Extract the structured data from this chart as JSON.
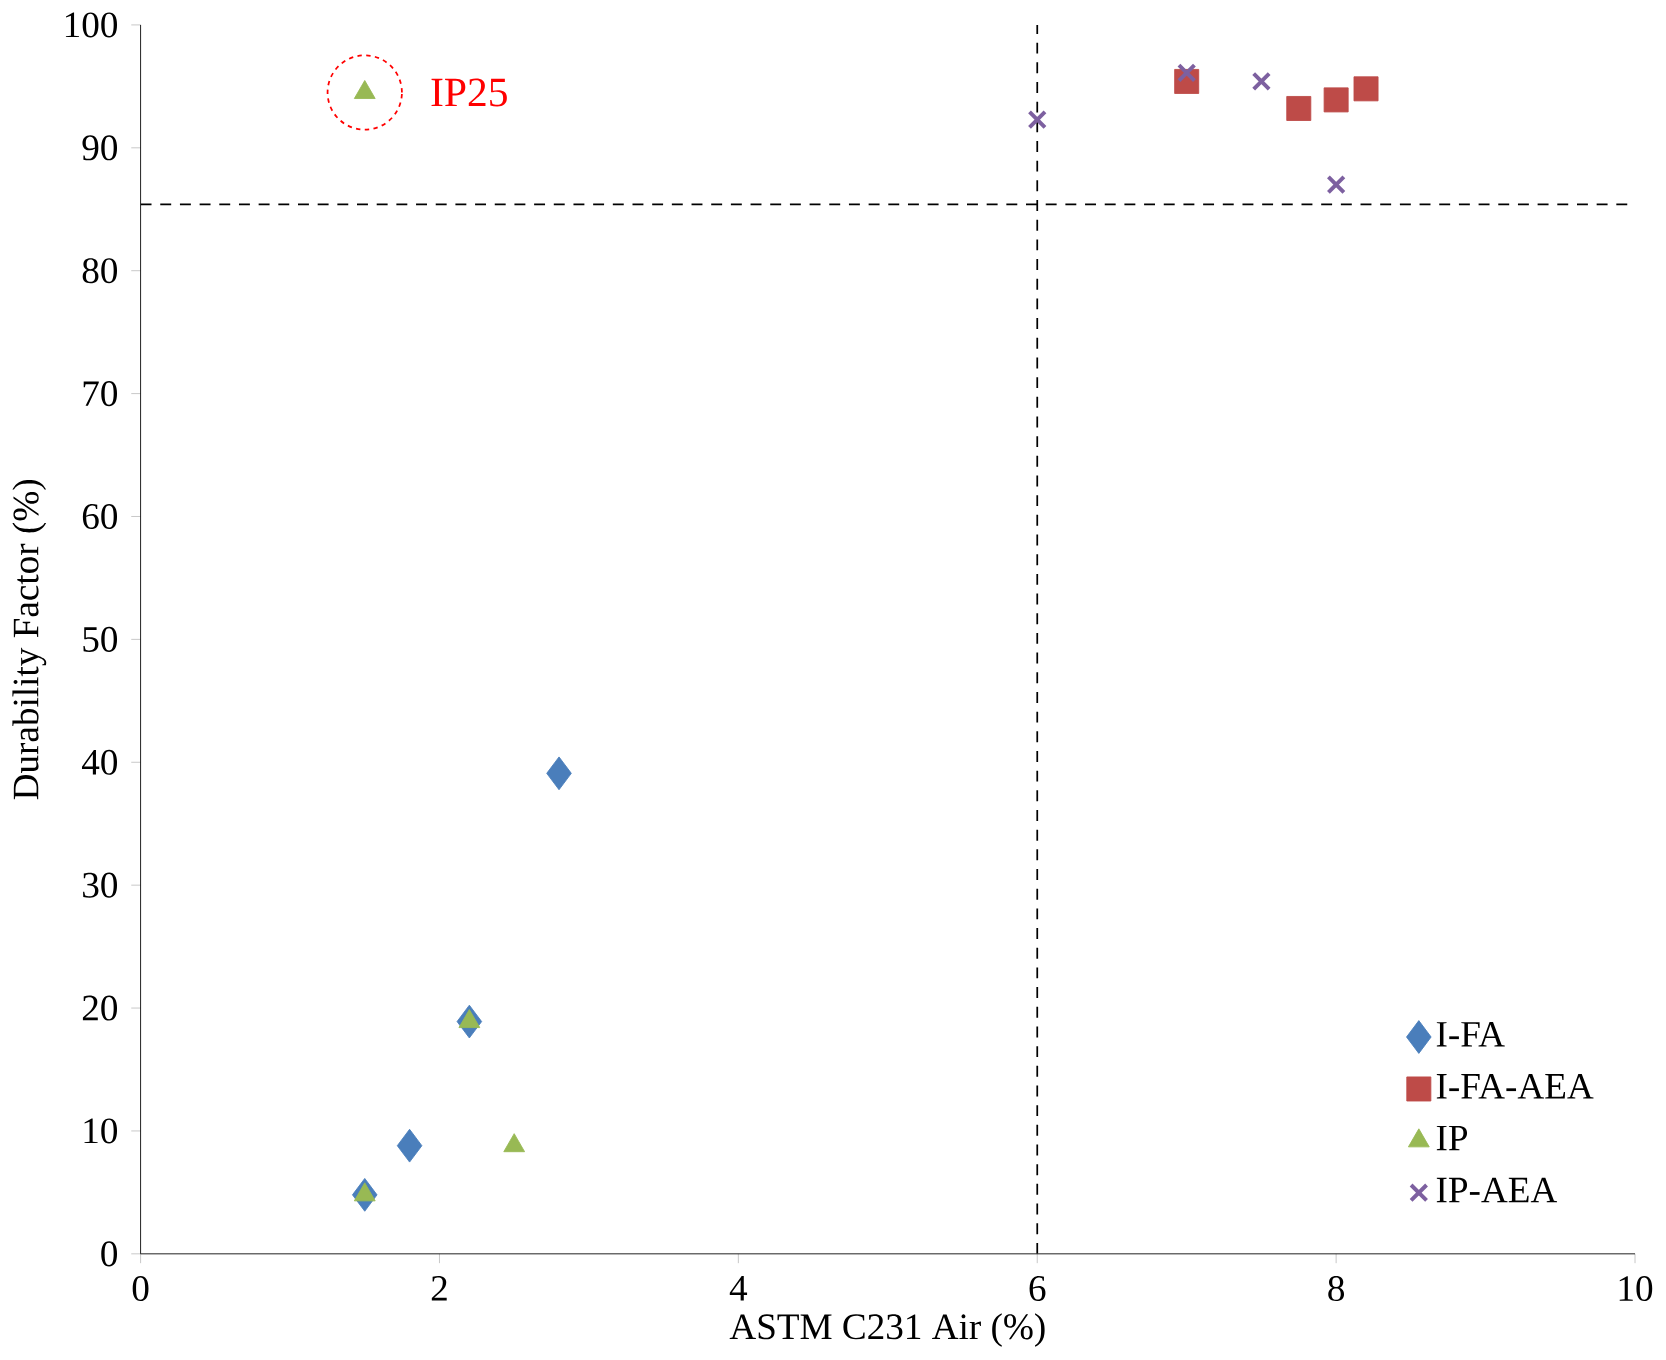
{
  "chart_data": {
    "type": "scatter",
    "xlabel": "ASTM C231 Air (%)",
    "ylabel": "Durability Factor (%)",
    "xlim": [
      0,
      10
    ],
    "ylim": [
      0,
      100
    ],
    "xticks": [
      0,
      2,
      4,
      6,
      8,
      10
    ],
    "yticks": [
      0,
      10,
      20,
      30,
      40,
      50,
      60,
      70,
      80,
      90,
      100
    ],
    "grid": false,
    "legend": "bottom right",
    "series": [
      {
        "name": "I-FA",
        "color": "#4a7ebb",
        "marker": "diamond",
        "x": [
          1.5,
          1.8,
          2.2,
          2.8
        ],
        "values": [
          4.8,
          8.8,
          18.9,
          39.1
        ]
      },
      {
        "name": "I-FA-AEA",
        "color": "#be4b48",
        "marker": "square",
        "x": [
          7.0,
          7.75,
          8.0,
          8.2
        ],
        "values": [
          95.4,
          93.2,
          93.9,
          94.8
        ]
      },
      {
        "name": "IP",
        "color": "#98b954",
        "marker": "triangle",
        "x": [
          1.5,
          1.5,
          2.2,
          2.5
        ],
        "values": [
          94.5,
          4.8,
          18.9,
          8.8
        ]
      },
      {
        "name": "IP-AEA",
        "color": "#7d60a0",
        "marker": "cross",
        "x": [
          6.0,
          7.0,
          7.5,
          8.0
        ],
        "values": [
          92.3,
          96.1,
          95.4,
          87.0
        ]
      }
    ],
    "ref_lines": [
      {
        "axis": "y",
        "value": 85.4,
        "line_style": "dashed",
        "color": "#000000"
      },
      {
        "axis": "x",
        "value": 6,
        "line_style": "dashed",
        "color": "#000000"
      }
    ],
    "annotations": [
      {
        "text": "IP25",
        "x": 1.5,
        "y": 94.5
      }
    ]
  }
}
